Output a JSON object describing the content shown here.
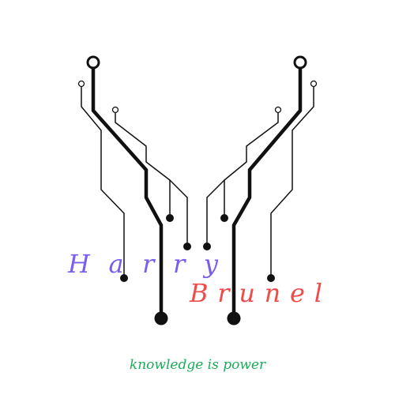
{
  "logo": {
    "first_name_letters": [
      "H",
      "a",
      "r",
      "r",
      "y"
    ],
    "last_name_letters": [
      "B",
      "r",
      "u",
      "n",
      "e",
      "l"
    ],
    "tagline": "knowledge is power"
  },
  "colors": {
    "first_name": "#7b5cf0",
    "last_name": "#ef4b4b",
    "tagline": "#1eaa5a",
    "circuit": "#111111",
    "background": "#ffffff"
  },
  "icons": [
    "circuit-traces-icon"
  ]
}
